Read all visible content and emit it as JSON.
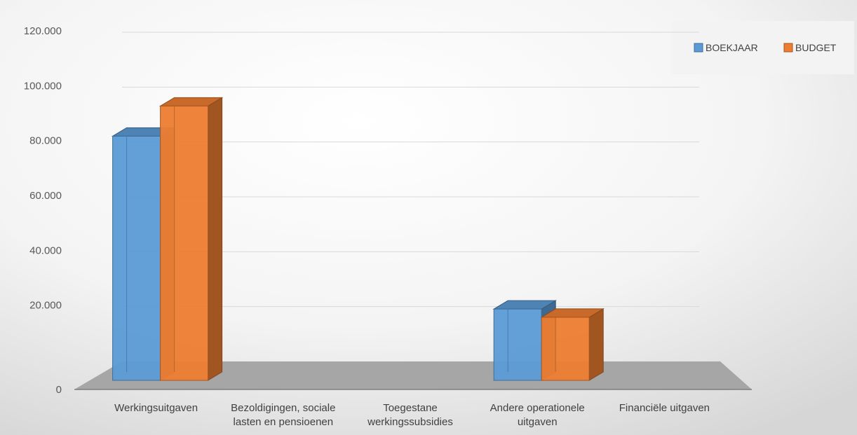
{
  "chart_data": {
    "type": "bar",
    "categories": [
      [
        "Werkingsuitgaven"
      ],
      [
        "Bezoldigingen, sociale",
        "lasten en pensioenen"
      ],
      [
        "Toegestane",
        "werkingssubsidies"
      ],
      [
        "Andere operationele",
        "uitgaven"
      ],
      [
        "Financiële uitgaven"
      ]
    ],
    "series": [
      {
        "name": "BOEKJAAR",
        "values": [
          89000,
          0,
          0,
          26000,
          0
        ],
        "color": "#5b9bd5"
      },
      {
        "name": "BUDGET",
        "values": [
          100000,
          0,
          0,
          23000,
          0
        ],
        "color": "#ed7d31"
      }
    ],
    "y_ticks": [
      "0",
      "20.000",
      "40.000",
      "60.000",
      "80.000",
      "100.000",
      "120.000"
    ],
    "ylim": [
      0,
      120000
    ],
    "grid": true,
    "legend": "top-right",
    "style": "3d-clustered-column"
  }
}
